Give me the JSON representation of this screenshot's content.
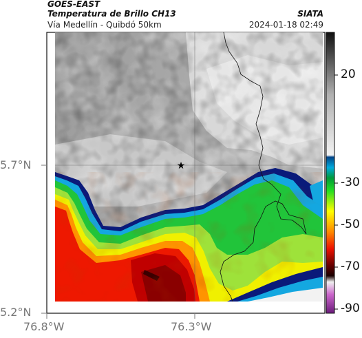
{
  "header": {
    "satellite": "GOES-EAST",
    "product": "Temperatura de Brillo CH13",
    "region": "Vía Medellín - Quibdó 50km",
    "brand": "SIATA",
    "timestamp": "2024-01-18 02:49"
  },
  "axes": {
    "lat_ticks": [
      "5.7°N",
      "5.2°N"
    ],
    "lon_ticks": [
      "76.8°W",
      "76.3°W"
    ]
  },
  "colorbar": {
    "ticks": [
      "20",
      "-30",
      "-50",
      "-70",
      "-90"
    ],
    "range": [
      -95,
      40
    ],
    "stops": [
      {
        "t": 40,
        "color": "#101010"
      },
      {
        "t": 25,
        "color": "#606060"
      },
      {
        "t": 10,
        "color": "#b0b0b0"
      },
      {
        "t": -19,
        "color": "#f2f2f2"
      },
      {
        "t": -20,
        "color": "#004488"
      },
      {
        "t": -25,
        "color": "#00aadd"
      },
      {
        "t": -30,
        "color": "#009a3a"
      },
      {
        "t": -36,
        "color": "#22dd22"
      },
      {
        "t": -46,
        "color": "#ffff00"
      },
      {
        "t": -56,
        "color": "#ff8800"
      },
      {
        "t": -64,
        "color": "#ee1100"
      },
      {
        "t": -72,
        "color": "#660000"
      },
      {
        "t": -77,
        "color": "#1a0000"
      },
      {
        "t": -80,
        "color": "#f0f0f0"
      },
      {
        "t": -86,
        "color": "#cc66cc"
      },
      {
        "t": -95,
        "color": "#6a1b7a"
      }
    ]
  },
  "marker": {
    "name": "star",
    "lat": 5.7,
    "lon": -76.32
  }
}
